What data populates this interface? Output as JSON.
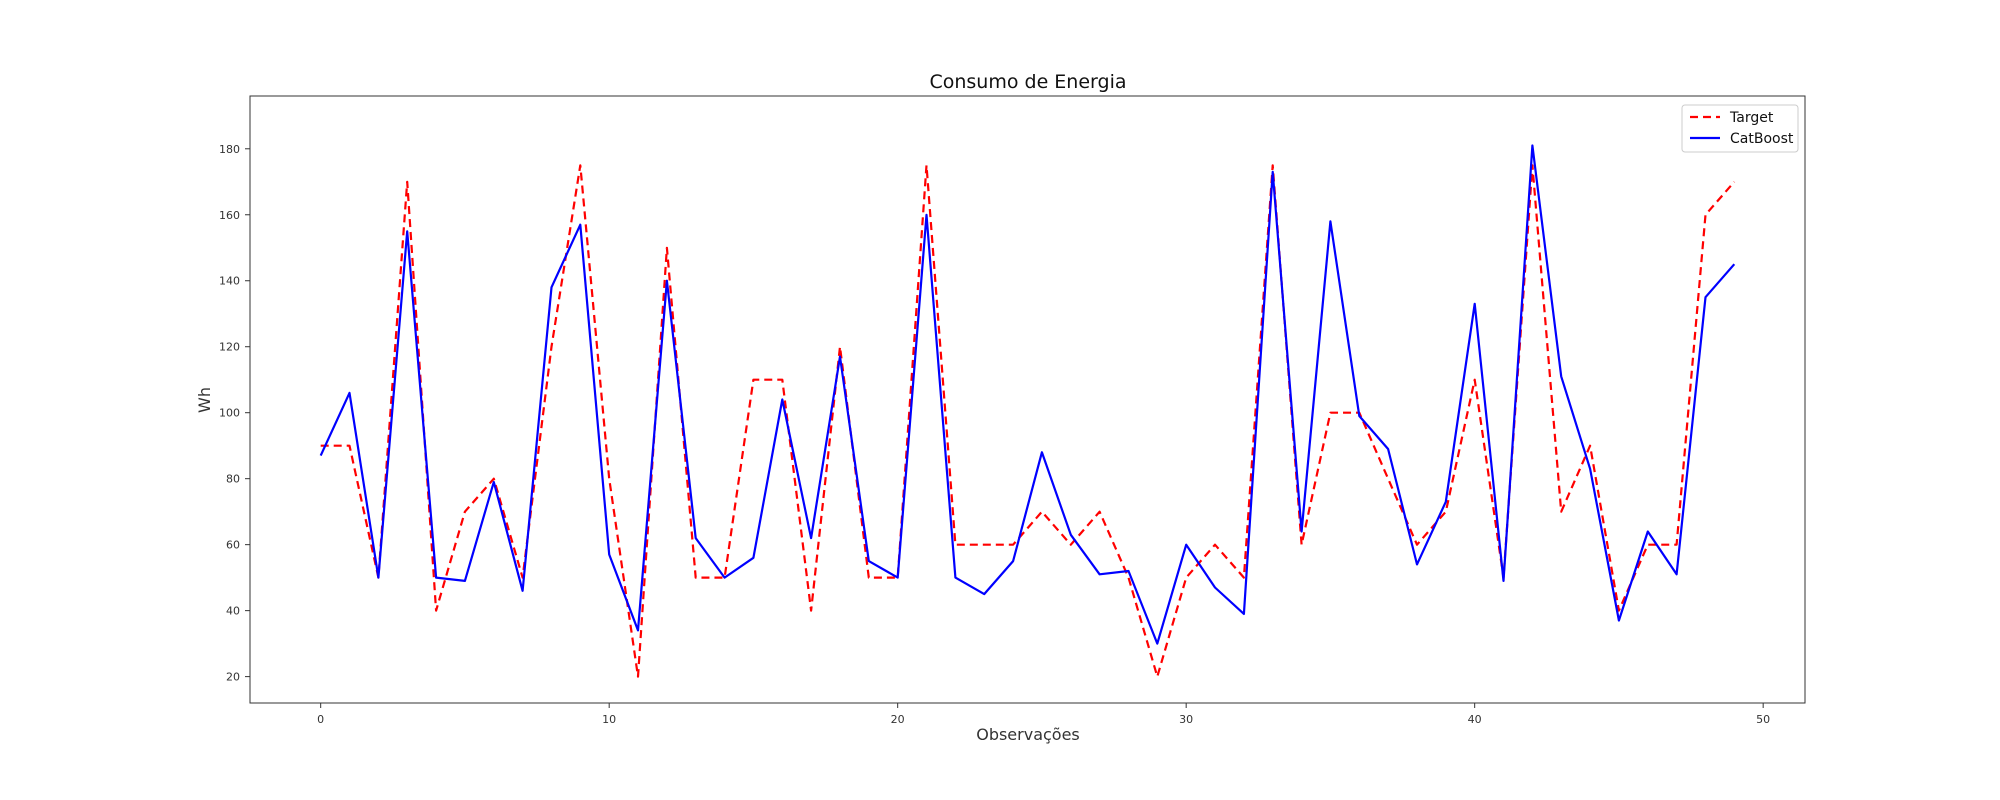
{
  "chart_data": {
    "type": "line",
    "title": "Consumo de Energia",
    "xlabel": "Observações",
    "ylabel": "Wh",
    "xlim": [
      -2.45,
      51.45
    ],
    "ylim": [
      12,
      196
    ],
    "xticks": [
      0,
      10,
      20,
      30,
      40,
      50
    ],
    "yticks": [
      20,
      40,
      60,
      80,
      100,
      120,
      140,
      160,
      180
    ],
    "grid": false,
    "legend_position": "top-right",
    "x": [
      0,
      1,
      2,
      3,
      4,
      5,
      6,
      7,
      8,
      9,
      10,
      11,
      12,
      13,
      14,
      15,
      16,
      17,
      18,
      19,
      20,
      21,
      22,
      23,
      24,
      25,
      26,
      27,
      28,
      29,
      30,
      31,
      32,
      33,
      34,
      35,
      36,
      37,
      38,
      39,
      40,
      41,
      42,
      43,
      44,
      45,
      46,
      47,
      48,
      49
    ],
    "series": [
      {
        "name": "Target",
        "color": "#ff0000",
        "style": "dashed",
        "values": [
          90,
          90,
          50,
          170,
          40,
          70,
          80,
          50,
          120,
          175,
          80,
          20,
          150,
          50,
          50,
          110,
          110,
          40,
          120,
          50,
          50,
          175,
          60,
          60,
          60,
          70,
          60,
          70,
          50,
          20,
          50,
          60,
          50,
          175,
          60,
          100,
          100,
          80,
          60,
          70,
          110,
          50,
          175,
          70,
          90,
          40,
          60,
          60,
          160,
          170
        ]
      },
      {
        "name": "CatBoost",
        "color": "#0000ff",
        "style": "solid",
        "values": [
          87,
          106,
          50,
          155,
          50,
          49,
          79,
          46,
          138,
          157,
          57,
          34,
          140,
          62,
          50,
          56,
          104,
          62,
          117,
          55,
          50,
          160,
          50,
          45,
          55,
          88,
          63,
          51,
          52,
          30,
          60,
          47,
          39,
          173,
          64,
          158,
          99,
          89,
          54,
          73,
          133,
          49,
          181,
          111,
          83,
          37,
          64,
          51,
          135,
          145
        ]
      }
    ]
  }
}
